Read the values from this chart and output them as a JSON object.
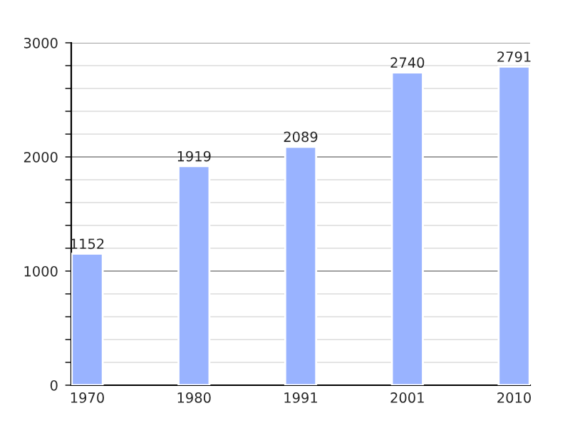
{
  "chart_data": {
    "type": "bar",
    "categories": [
      "1970",
      "1980",
      "1991",
      "2001",
      "2010"
    ],
    "values": [
      1152,
      1919,
      2089,
      2740,
      2791
    ],
    "color": "#99b3ff",
    "data_labels": true,
    "grid": "y",
    "legend": false,
    "ylim": [
      0,
      3000
    ],
    "yticks": [
      0,
      {
        "value": 200,
        "label": null
      },
      {
        "value": 400,
        "label": null
      },
      {
        "value": 600,
        "label": null
      },
      {
        "value": 800,
        "label": null
      },
      1000,
      {
        "value": 1200,
        "label": null
      },
      {
        "value": 1400,
        "label": null
      },
      {
        "value": 1600,
        "label": null
      },
      {
        "value": 1800,
        "label": null
      },
      2000,
      {
        "value": 2200,
        "label": null
      },
      {
        "value": 2400,
        "label": null
      },
      {
        "value": 2600,
        "label": null
      },
      {
        "value": 2800,
        "label": null
      },
      3000
    ]
  }
}
